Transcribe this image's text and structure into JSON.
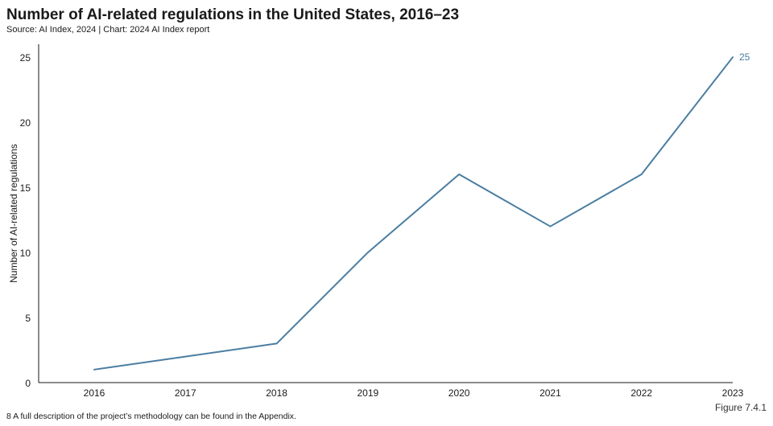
{
  "header": {
    "title": "Number of AI-related regulations in the United States, 2016–23",
    "source": "Source: AI Index, 2024 | Chart: 2024 AI Index report"
  },
  "footer": {
    "figure": "Figure 7.4.1",
    "footnote": "8 A full description of the project’s methodology can be found in the Appendix."
  },
  "colors": {
    "line": "#4a7ea1",
    "axis": "#1a1a1a"
  },
  "chart_data": {
    "type": "line",
    "title": "Number of AI-related regulations in the United States, 2016–23",
    "xlabel": "",
    "ylabel": "Number of AI-related regulations",
    "categories": [
      "2016",
      "2017",
      "2018",
      "2019",
      "2020",
      "2021",
      "2022",
      "2023"
    ],
    "series": [
      {
        "name": "AI-related regulations",
        "values": [
          1,
          2,
          3,
          10,
          16,
          12,
          16,
          25
        ]
      }
    ],
    "ylim": [
      0,
      26
    ],
    "yticks": [
      0,
      5,
      10,
      15,
      20,
      25
    ],
    "annotations": [
      {
        "category": "2023",
        "label": "25"
      }
    ],
    "grid": false
  }
}
